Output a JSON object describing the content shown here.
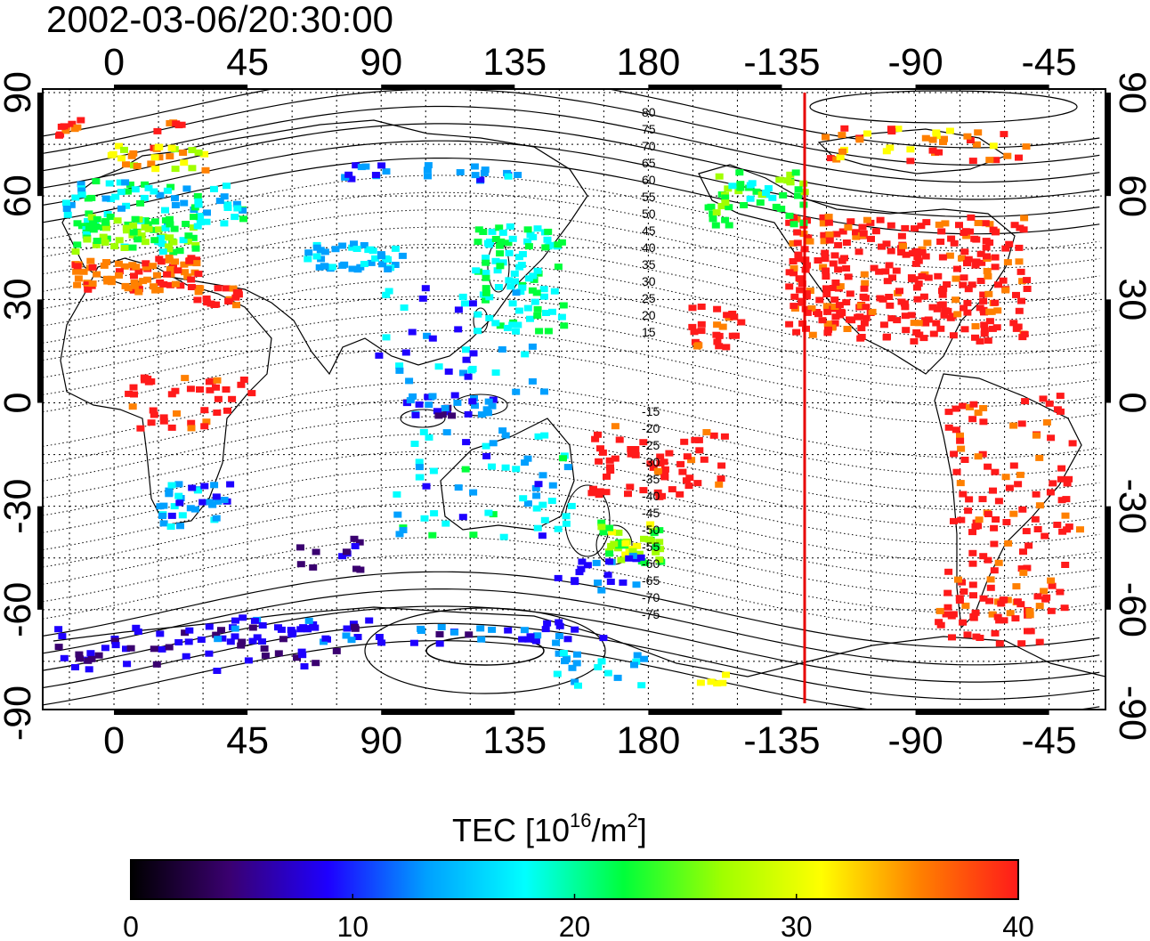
{
  "title": "2002-03-06/20:30:00",
  "map": {
    "x_tick_labels": [
      "0",
      "45",
      "90",
      "135",
      "180",
      "-135",
      "-90",
      "-45"
    ],
    "y_tick_labels": [
      "90",
      "60",
      "30",
      "0",
      "-30",
      "-60",
      "-90"
    ],
    "contour_labels_north": [
      "80",
      "75",
      "70",
      "65",
      "60",
      "55",
      "50",
      "45",
      "40",
      "35",
      "30",
      "25",
      "20",
      "15"
    ],
    "contour_labels_south": [
      "-15",
      "-20",
      "-25",
      "-30",
      "-35",
      "-40",
      "-45",
      "-50",
      "-55",
      "-60",
      "-65",
      "-70",
      "-75"
    ],
    "terminator_color": "#e60000"
  },
  "colorbar": {
    "label_main": "TEC  [10",
    "label_exp": "16",
    "label_unit": "/m",
    "label_unit_exp": "2",
    "label_close": "]",
    "tick_labels": [
      "0",
      "10",
      "20",
      "30",
      "40"
    ],
    "range": [
      0,
      40
    ],
    "colors": [
      "#000000",
      "#3a0070",
      "#1e00ff",
      "#00a0ff",
      "#00ffff",
      "#00ff3a",
      "#a0ff00",
      "#ffff00",
      "#ff8000",
      "#ff1a1a"
    ]
  }
}
